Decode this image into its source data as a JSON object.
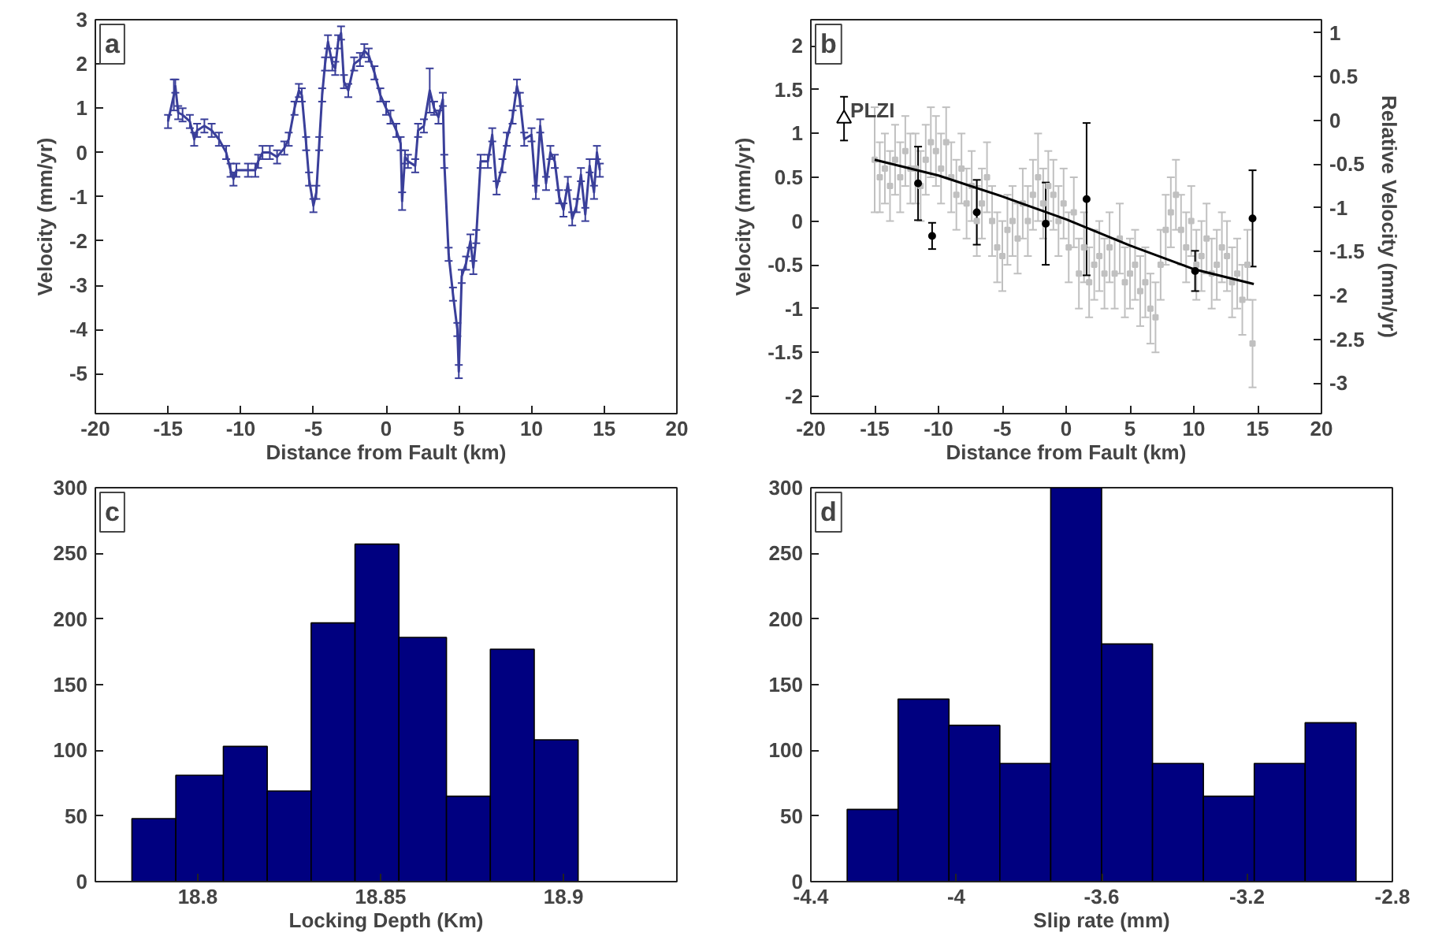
{
  "chart_data": [
    {
      "type": "line",
      "title": "a",
      "xlabel": "Distance from Fault (km)",
      "ylabel": "Velocity (mm/yr)",
      "color": "#3a3f9a",
      "marker": "none",
      "x": [
        -15,
        -14.6,
        -14.5,
        -14.3,
        -14,
        -13.5,
        -13.2,
        -13,
        -12.5,
        -12,
        -11.5,
        -11,
        -10.7,
        -10.5,
        -10.3,
        -9.5,
        -9,
        -8.8,
        -8.5,
        -8,
        -7.5,
        -7,
        -6.7,
        -6.3,
        -6,
        -5.8,
        -5.5,
        -5.3,
        -5,
        -4.8,
        -4.6,
        -4.4,
        -4.2,
        -4,
        -3.7,
        -3.5,
        -3.3,
        -3.1,
        -2.9,
        -2.6,
        -2.2,
        -1.8,
        -1.5,
        -1.2,
        -0.8,
        -0.4,
        0,
        0.3,
        0.7,
        1,
        1.1,
        1.3,
        1.5,
        2,
        2.2,
        2.6,
        3,
        3.3,
        3.6,
        3.9,
        4,
        4.3,
        4.6,
        4.9,
        5,
        5.2,
        5.5,
        5.8,
        6,
        6.2,
        6.5,
        7,
        7.3,
        7.6,
        8,
        8.3,
        8.7,
        9,
        9.2,
        9.5,
        10,
        10.3,
        10.6,
        11,
        11.3,
        11.6,
        11.9,
        12.2,
        12.5,
        12.8,
        13.1,
        13.4,
        13.7,
        14,
        14.3,
        14.5,
        14.7
      ],
      "values": [
        0.7,
        1.3,
        1.5,
        0.9,
        0.85,
        0.7,
        0.3,
        0.5,
        0.6,
        0.5,
        0.3,
        0,
        -0.4,
        -0.6,
        -0.4,
        -0.4,
        -0.4,
        -0.2,
        0,
        0,
        -0.1,
        0.1,
        0.3,
        1,
        1.4,
        1.3,
        0.2,
        -0.6,
        -1.2,
        -0.9,
        0.2,
        1.3,
        2,
        2.5,
        2,
        1.9,
        2.5,
        2.7,
        1.6,
        1.4,
        2,
        2.1,
        2.3,
        2.2,
        1.8,
        1.3,
        1,
        0.8,
        0.5,
        0.2,
        -1.1,
        -0.1,
        -0.2,
        -0.3,
        0.5,
        0.6,
        1.4,
        1,
        0.8,
        1.2,
        -0.2,
        -2.3,
        -3.2,
        -4,
        -4.95,
        -2.8,
        -2.5,
        -2,
        -2.6,
        -1.9,
        -0.2,
        -0.2,
        0.4,
        -0.8,
        -0.3,
        0.3,
        0.8,
        1.5,
        1.2,
        0.3,
        0.4,
        -0.9,
        0.6,
        -0.7,
        0,
        -0.2,
        -1,
        -1.3,
        -0.7,
        -1.5,
        -1.2,
        -0.5,
        -1.4,
        -0.3,
        -0.9,
        0,
        -0.4
      ],
      "errors": [
        0.15,
        0.35,
        0.15,
        0.15,
        0.15,
        0.15,
        0.15,
        0.15,
        0.15,
        0.15,
        0.15,
        0.15,
        0.15,
        0.15,
        0.15,
        0.15,
        0.15,
        0.15,
        0.15,
        0.15,
        0.15,
        0.15,
        0.15,
        0.15,
        0.15,
        0.15,
        0.15,
        0.15,
        0.15,
        0.15,
        0.15,
        0.15,
        0.15,
        0.15,
        0.15,
        0.15,
        0.15,
        0.15,
        0.15,
        0.15,
        0.15,
        0.15,
        0.15,
        0.15,
        0.15,
        0.15,
        0.15,
        0.15,
        0.15,
        0.15,
        0.2,
        0.15,
        0.15,
        0.15,
        0.15,
        0.15,
        0.5,
        0.15,
        0.15,
        0.15,
        0.15,
        0.15,
        0.15,
        0.15,
        0.15,
        0.15,
        0.15,
        0.15,
        0.15,
        0.15,
        0.15,
        0.15,
        0.15,
        0.15,
        0.15,
        0.15,
        0.15,
        0.15,
        0.15,
        0.15,
        0.15,
        0.15,
        0.15,
        0.15,
        0.15,
        0.15,
        0.15,
        0.15,
        0.15,
        0.15,
        0.15,
        0.15,
        0.15,
        0.15,
        0.15,
        0.15,
        0.15
      ],
      "xlim": [
        -20,
        20
      ],
      "xticks": [
        -20,
        -15,
        -10,
        -5,
        0,
        5,
        10,
        15,
        20
      ],
      "ylim": [
        -5.9,
        3
      ],
      "yticks": [
        -5,
        -4,
        -3,
        -2,
        -1,
        0,
        1,
        2,
        3
      ],
      "grid": false
    },
    {
      "type": "scatter",
      "title": "b",
      "xlabel": "Distance from Fault (km)",
      "ylabel": "Velocity (mm/yr)",
      "y2label": "Relative Velocity (mm/yr)",
      "annotations": [
        {
          "text": "PLZI",
          "x": -17.4,
          "y": 1.17
        }
      ],
      "series": [
        {
          "type": "scatter",
          "marker": "square",
          "color": "#c0c0c0",
          "x": [
            -15,
            -14.6,
            -14.2,
            -13.8,
            -13.4,
            -13,
            -12.6,
            -12.2,
            -11.8,
            -11.4,
            -11,
            -10.6,
            -10.2,
            -9.8,
            -9.4,
            -9,
            -8.6,
            -8.2,
            -7.8,
            -7.4,
            -7,
            -6.6,
            -6.2,
            -5.8,
            -5.4,
            -5,
            -4.6,
            -4.2,
            -3.8,
            -3.4,
            -3,
            -2.6,
            -2.2,
            -1.8,
            -1.4,
            -1,
            -0.6,
            -0.2,
            0.2,
            0.6,
            1,
            1.4,
            1.8,
            2.2,
            2.6,
            3,
            3.4,
            3.8,
            4.2,
            4.6,
            5,
            5.4,
            5.8,
            6.2,
            6.6,
            7,
            7.4,
            7.8,
            8.2,
            8.6,
            9,
            9.4,
            9.8,
            10.2,
            10.6,
            11,
            11.4,
            11.8,
            12.2,
            12.6,
            13,
            13.4,
            13.8,
            14.2,
            14.6
          ],
          "values": [
            0.7,
            0.5,
            0.6,
            0.4,
            0.7,
            0.5,
            0.8,
            0.6,
            0.6,
            0.4,
            0.7,
            0.9,
            0.8,
            0.6,
            0.9,
            0.5,
            0.3,
            0.6,
            0.2,
            0.4,
            0.0,
            0.2,
            0.5,
            0.0,
            -0.3,
            -0.4,
            -0.1,
            0.0,
            -0.2,
            0.2,
            0.0,
            0.3,
            0.5,
            0.2,
            0.4,
            0.3,
            0.0,
            0.2,
            -0.3,
            0.1,
            -0.6,
            -0.3,
            -0.7,
            -0.5,
            -0.4,
            -0.6,
            -0.3,
            -0.6,
            -0.2,
            -0.7,
            -0.6,
            -0.5,
            -0.8,
            -0.7,
            -1.0,
            -1.1,
            -0.5,
            -0.1,
            0.1,
            0.3,
            -0.1,
            -0.3,
            0.0,
            -0.5,
            -0.4,
            -0.2,
            -0.6,
            -0.5,
            -0.3,
            -0.4,
            -0.7,
            -0.6,
            -0.9,
            -0.5,
            -1.4
          ],
          "errors": [
            0.6,
            0.4,
            0.4,
            0.4,
            0.4,
            0.4,
            0.4,
            0.4,
            0.4,
            0.4,
            0.4,
            0.4,
            0.4,
            0.4,
            0.4,
            0.4,
            0.4,
            0.4,
            0.4,
            0.4,
            0.4,
            0.4,
            0.4,
            0.4,
            0.4,
            0.4,
            0.4,
            0.4,
            0.4,
            0.4,
            0.4,
            0.4,
            0.5,
            0.4,
            0.4,
            0.4,
            0.4,
            0.4,
            0.4,
            0.4,
            0.4,
            0.4,
            0.4,
            0.4,
            0.4,
            0.4,
            0.4,
            0.4,
            0.4,
            0.4,
            0.4,
            0.4,
            0.4,
            0.4,
            0.4,
            0.4,
            0.4,
            0.4,
            0.4,
            0.4,
            0.4,
            0.4,
            0.4,
            0.4,
            0.4,
            0.4,
            0.4,
            0.4,
            0.4,
            0.4,
            0.4,
            0.4,
            0.4,
            0.4,
            0.5
          ]
        },
        {
          "type": "line",
          "color": "#000000",
          "x": [
            -15,
            -10,
            -5,
            0,
            5,
            10,
            14.7
          ],
          "values": [
            0.7,
            0.52,
            0.28,
            0.02,
            -0.28,
            -0.55,
            -0.72
          ]
        },
        {
          "type": "scatter",
          "marker": "circle",
          "color": "#000000",
          "x": [
            -11.6,
            -10.5,
            -7,
            -1.6,
            1.6,
            10.1,
            14.6
          ],
          "values": [
            0.43,
            -0.17,
            0.1,
            -0.03,
            0.25,
            -0.57,
            0.03
          ],
          "errors": [
            0.42,
            0.15,
            0.37,
            0.47,
            0.87,
            0.23,
            0.55
          ]
        },
        {
          "type": "scatter",
          "marker": "triangle",
          "color": "#000000",
          "x": [
            -17.4
          ],
          "values": [
            1.17
          ],
          "errors": [
            0.25
          ]
        }
      ],
      "xlim": [
        -20,
        20
      ],
      "xticks": [
        -20,
        -15,
        -10,
        -5,
        0,
        5,
        10,
        15,
        20
      ],
      "ylim": [
        -2.2,
        2.3
      ],
      "yticks": [
        -2,
        -1.5,
        -1,
        -0.5,
        0,
        0.5,
        1,
        1.5,
        2
      ],
      "y2lim": [
        -3.35,
        1.15
      ],
      "y2ticks": [
        -3,
        -2.5,
        -2,
        -1.5,
        -1,
        -0.5,
        0,
        0.5,
        1
      ],
      "grid": false
    },
    {
      "type": "histogram",
      "title": "c",
      "xlabel": "Locking Depth (Km)",
      "color": "#000080",
      "bins": [
        18.782,
        18.794,
        18.807,
        18.819,
        18.831,
        18.843,
        18.855,
        18.868,
        18.88,
        18.892,
        18.904
      ],
      "values": [
        48,
        81,
        103,
        69,
        197,
        257,
        186,
        65,
        177,
        108
      ],
      "xlim": [
        18.772,
        18.931
      ],
      "xticks": [
        18.8,
        18.85,
        18.9
      ],
      "ylim": [
        0,
        300
      ],
      "yticks": [
        0,
        50,
        100,
        150,
        200,
        250,
        300
      ],
      "grid": false
    },
    {
      "type": "histogram",
      "title": "d",
      "xlabel": "Slip rate (mm)",
      "color": "#000080",
      "bins": [
        -4.3,
        -4.16,
        -4.02,
        -3.88,
        -3.74,
        -3.6,
        -3.46,
        -3.32,
        -3.18,
        -3.04,
        -2.9
      ],
      "values": [
        55,
        139,
        119,
        90,
        300,
        181,
        90,
        65,
        90,
        121
      ],
      "xlim": [
        -4.4,
        -2.8
      ],
      "xticks": [
        -4.4,
        -4,
        -3.6,
        -3.2,
        -2.8
      ],
      "ylim": [
        0,
        300
      ],
      "yticks": [
        0,
        50,
        100,
        150,
        200,
        250,
        300
      ],
      "grid": false
    }
  ]
}
